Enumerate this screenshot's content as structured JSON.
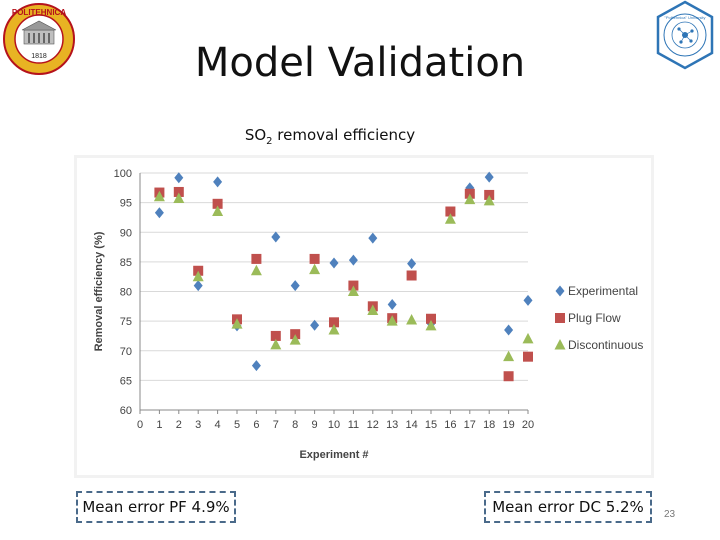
{
  "slide": {
    "title": "Model Validation",
    "subtitle_prefix": "SO",
    "subtitle_sub": "2",
    "subtitle_suffix": " removal efficiency",
    "callout_left": "Mean error PF 4.9%",
    "callout_right": "Mean error DC 5.2%",
    "page_number": "23",
    "logo_left_text": "POLITEHNICA",
    "logo_left_year": "1818",
    "logo_right_text": "\"Politehnica\" University"
  },
  "colors": {
    "experimental": "#4f81bd",
    "plug_flow": "#c0504d",
    "discontinuous": "#9bbb59",
    "grid": "#d9d9d9",
    "axis_text": "#444444"
  },
  "chart_data": {
    "type": "scatter",
    "title": "SO2 removal efficiency",
    "xlabel": "Experiment #",
    "ylabel": "Removal efficiency (%)",
    "xlim": [
      0,
      20
    ],
    "ylim": [
      60,
      100
    ],
    "x_ticks": [
      0,
      1,
      2,
      3,
      4,
      5,
      6,
      7,
      8,
      9,
      10,
      11,
      12,
      13,
      14,
      15,
      16,
      17,
      18,
      19,
      20
    ],
    "y_ticks": [
      60,
      65,
      70,
      75,
      80,
      85,
      90,
      95,
      100
    ],
    "legend_position": "right",
    "series": [
      {
        "name": "Experimental",
        "marker": "diamond",
        "color_key": "experimental",
        "points": [
          [
            1,
            93.3
          ],
          [
            2,
            99.2
          ],
          [
            3,
            81
          ],
          [
            4,
            98.5
          ],
          [
            5,
            74.2
          ],
          [
            6,
            67.5
          ],
          [
            7,
            89.2
          ],
          [
            8,
            81
          ],
          [
            9,
            74.3
          ],
          [
            10,
            84.8
          ],
          [
            11,
            85.3
          ],
          [
            12,
            89
          ],
          [
            13,
            77.8
          ],
          [
            14,
            84.7
          ],
          [
            15,
            74.6
          ],
          [
            17,
            97.5
          ],
          [
            18,
            99.3
          ],
          [
            19,
            73.5
          ],
          [
            20,
            78.5
          ]
        ]
      },
      {
        "name": "Plug Flow",
        "marker": "square",
        "color_key": "plug_flow",
        "points": [
          [
            1,
            96.7
          ],
          [
            2,
            96.8
          ],
          [
            3,
            83.5
          ],
          [
            4,
            94.8
          ],
          [
            5,
            75.3
          ],
          [
            6,
            85.5
          ],
          [
            7,
            72.5
          ],
          [
            8,
            72.8
          ],
          [
            9,
            85.5
          ],
          [
            10,
            74.8
          ],
          [
            11,
            81
          ],
          [
            12,
            77.5
          ],
          [
            13,
            75.5
          ],
          [
            14,
            82.7
          ],
          [
            15,
            75.4
          ],
          [
            16,
            93.5
          ],
          [
            17,
            96.5
          ],
          [
            18,
            96.3
          ],
          [
            19,
            65.7
          ],
          [
            20,
            69
          ]
        ]
      },
      {
        "name": "Discontinuous",
        "marker": "triangle",
        "color_key": "discontinuous",
        "points": [
          [
            1,
            96
          ],
          [
            2,
            95.7
          ],
          [
            3,
            82.5
          ],
          [
            4,
            93.5
          ],
          [
            5,
            74.5
          ],
          [
            6,
            83.5
          ],
          [
            7,
            71
          ],
          [
            8,
            71.8
          ],
          [
            9,
            83.7
          ],
          [
            10,
            73.5
          ],
          [
            11,
            80
          ],
          [
            12,
            76.8
          ],
          [
            13,
            75
          ],
          [
            14,
            75.2
          ],
          [
            15,
            74.2
          ],
          [
            16,
            92.2
          ],
          [
            17,
            95.5
          ],
          [
            18,
            95.3
          ],
          [
            19,
            69
          ],
          [
            20,
            72
          ]
        ]
      }
    ]
  }
}
